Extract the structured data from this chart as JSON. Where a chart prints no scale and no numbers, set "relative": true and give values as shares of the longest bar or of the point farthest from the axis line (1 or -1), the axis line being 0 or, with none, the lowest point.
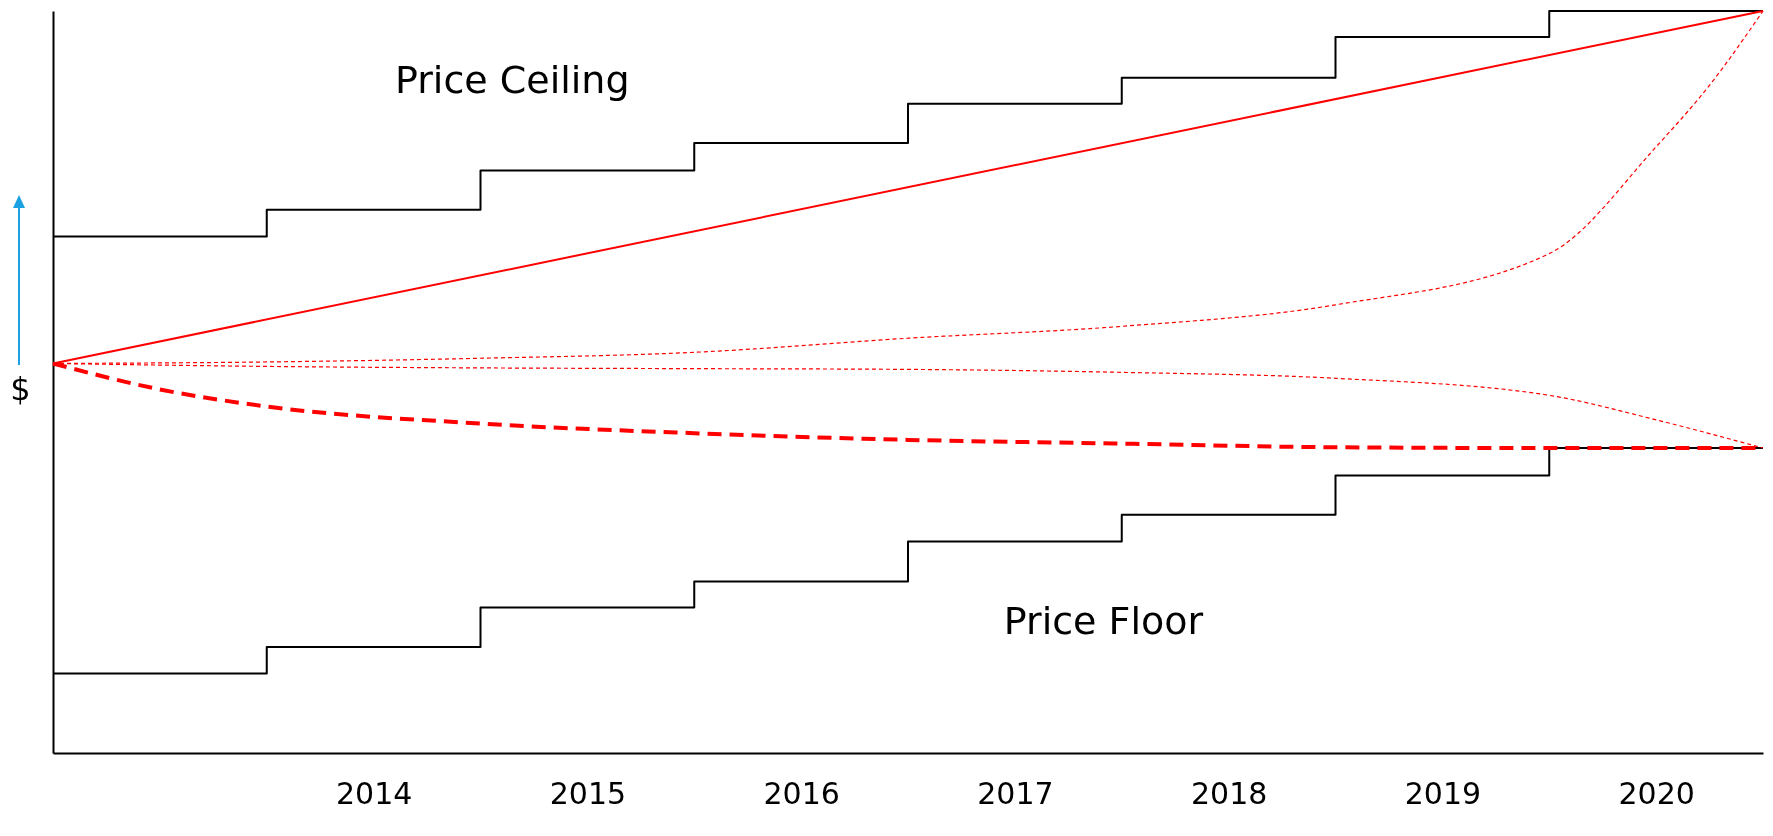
{
  "chart_data": {
    "type": "line",
    "relative": true,
    "ylabel": "$",
    "xlim": [
      2012.5,
      2020.5
    ],
    "xticks": [
      2014,
      2015,
      2016,
      2017,
      2018,
      2019,
      2020
    ],
    "grid": false,
    "series": [
      {
        "type": "step",
        "color": "#000000",
        "line_style": "solid",
        "x": [
          2012.5,
          2013.5,
          2014.5,
          2015.5,
          2016.5,
          2017.5,
          2018.5,
          2019.5,
          2020.5
        ],
        "values": [
          0.696,
          0.732,
          0.785,
          0.822,
          0.875,
          0.91,
          0.965,
          1.0,
          1.0
        ]
      },
      {
        "type": "step",
        "color": "#000000",
        "line_style": "solid",
        "x": [
          2012.5,
          2013.5,
          2014.5,
          2015.5,
          2016.5,
          2017.5,
          2018.5,
          2019.5,
          2020.5
        ],
        "values": [
          0.107,
          0.143,
          0.196,
          0.231,
          0.285,
          0.321,
          0.374,
          0.411,
          0.411
        ]
      },
      {
        "color": "#ff0000",
        "line_style": "solid",
        "x": [
          2012.5,
          2020.5
        ],
        "values": [
          0.525,
          1.0
        ]
      },
      {
        "color": "#ff0000",
        "line_style": "dotted",
        "x": [
          2012.5,
          2013.5,
          2014.5,
          2015.5,
          2016.5,
          2017.5,
          2018.5,
          2019.5,
          2020,
          2020.25,
          2020.5
        ],
        "values": [
          0.525,
          0.527,
          0.532,
          0.54,
          0.559,
          0.575,
          0.604,
          0.673,
          0.817,
          0.9,
          1.0
        ]
      },
      {
        "color": "#ff0000",
        "line_style": "dotted",
        "x": [
          2012.5,
          2013.5,
          2014.5,
          2015.5,
          2016.5,
          2017.5,
          2018.5,
          2019.5,
          2020,
          2020.5
        ],
        "values": [
          0.525,
          0.521,
          0.519,
          0.518,
          0.517,
          0.513,
          0.505,
          0.482,
          0.449,
          0.411
        ]
      },
      {
        "color": "#ff0000",
        "line_style": "dashed",
        "x": [
          2012.5,
          2013,
          2013.5,
          2014.5,
          2015.5,
          2016.5,
          2017.5,
          2018.5,
          2019.5,
          2020.5
        ],
        "values": [
          0.525,
          0.49,
          0.467,
          0.444,
          0.431,
          0.422,
          0.417,
          0.412,
          0.411,
          0.411
        ]
      }
    ],
    "annotations": [
      "Price Ceiling",
      "Price Floor"
    ]
  }
}
